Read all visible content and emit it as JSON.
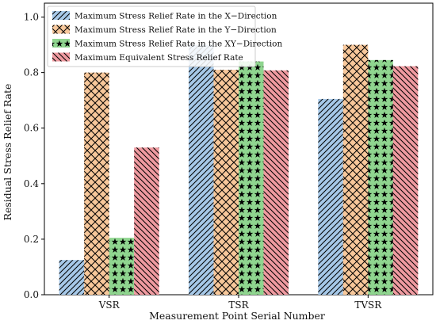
{
  "chart_data": {
    "type": "bar",
    "title": "",
    "xlabel": "Measurement Point Serial Number",
    "ylabel": "Residual Stress Relief Rate",
    "categories": [
      "VSR",
      "TSR",
      "TVSR"
    ],
    "ylim": [
      0.0,
      1.05
    ],
    "yticks": [
      "0.0",
      "0.2",
      "0.4",
      "0.6",
      "0.8",
      "1.0"
    ],
    "legend_position": "top-left",
    "grid": false,
    "series": [
      {
        "name": "Maximum Stress Relief Rate in the X−Direction",
        "values": [
          0.125,
          0.9,
          0.705
        ],
        "color": "#a6c8e8",
        "hatch": "diagonal-forward"
      },
      {
        "name": "Maximum Stress Relief Rate in the Y−Direction",
        "values": [
          0.8,
          0.81,
          0.9
        ],
        "color": "#f7c79a",
        "hatch": "crosshatch"
      },
      {
        "name": "Maximum Stress Relief Rate in the XY−Direction",
        "values": [
          0.205,
          0.84,
          0.845
        ],
        "color": "#8fd58f",
        "hatch": "stars"
      },
      {
        "name": "Maximum Equivalent Stress Relief Rate",
        "values": [
          0.53,
          0.808,
          0.823
        ],
        "color": "#ef9aa0",
        "hatch": "diagonal-back"
      }
    ]
  }
}
